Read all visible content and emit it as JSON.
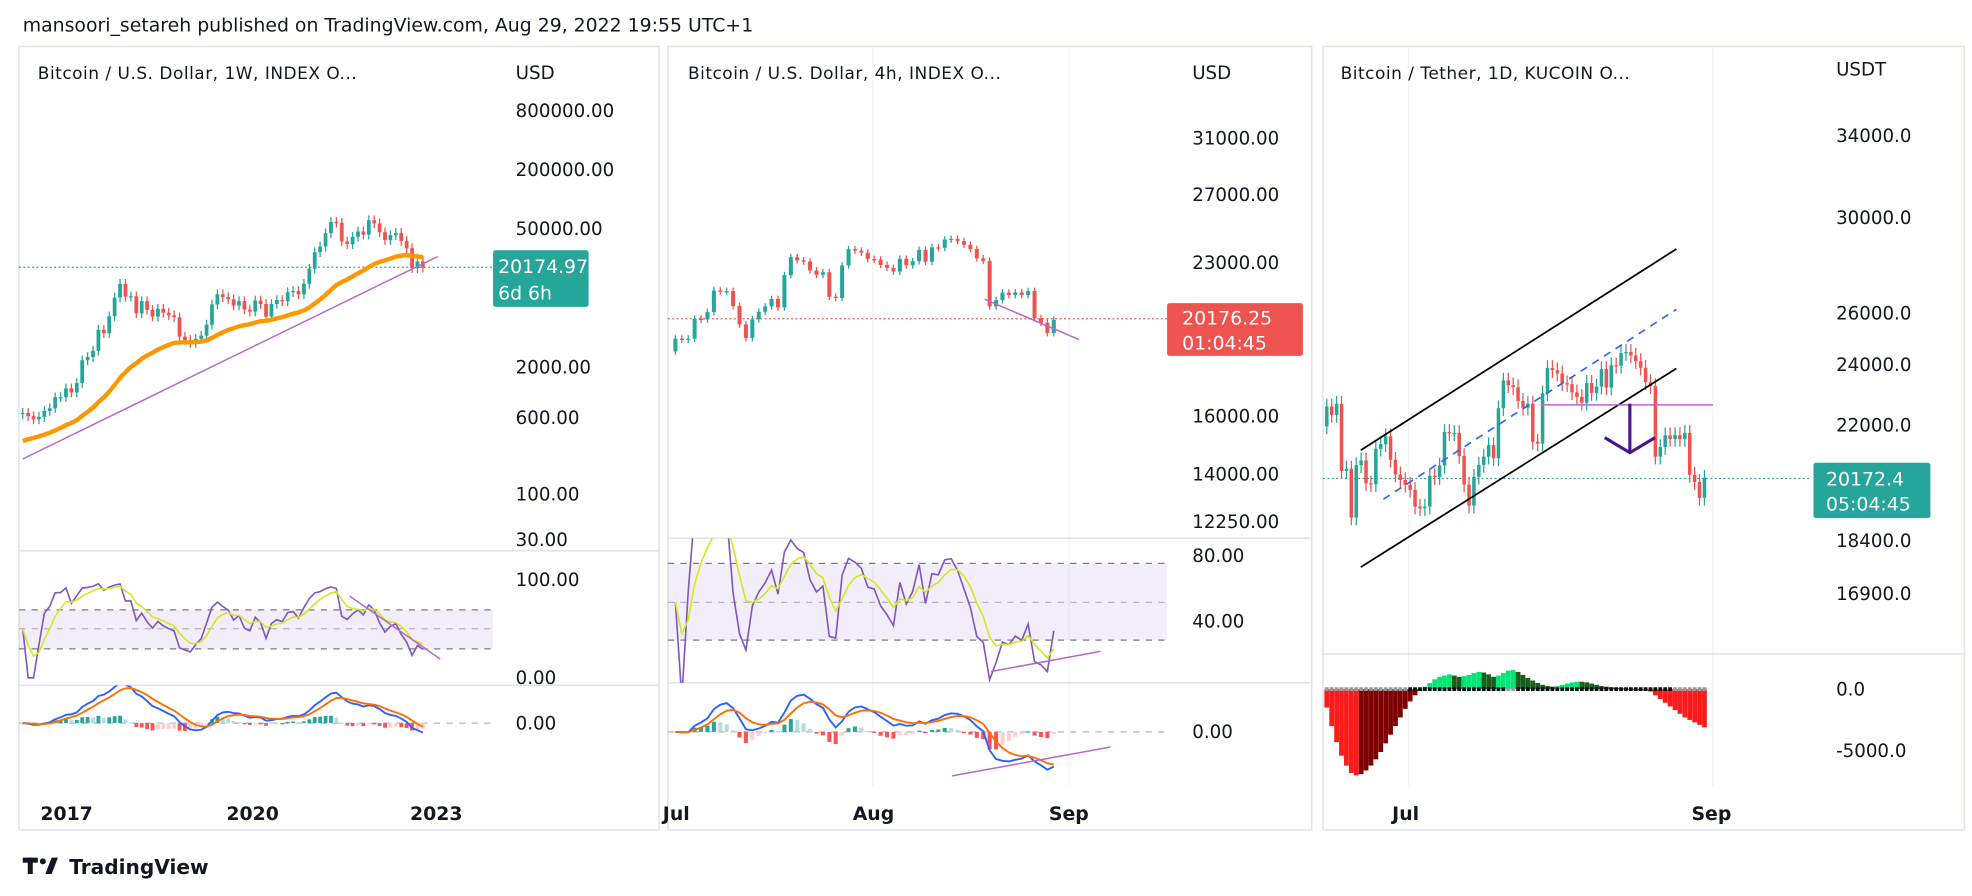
{
  "header": {
    "text": "mansoori_setareh published on TradingView.com, Aug 29, 2022 19:55 UTC+1"
  },
  "footer": {
    "brand": "TradingView",
    "logo_icon": "tradingview-logo-icon"
  },
  "colors": {
    "up": "#26a69a",
    "down": "#ef5350",
    "ma": "#ff9800",
    "rsi": "#7e57c2",
    "rsi_signal": "#d4e820",
    "macd": "#2962ff",
    "macd_signal": "#ff6d00",
    "trendline": "#ba68c8",
    "channel": "#000000",
    "midline": "#2962ff",
    "arrow": "#4a148c"
  },
  "chart_data": [
    {
      "type": "candlestick",
      "title": "Bitcoin / U.S. Dollar, 1W, INDEX  O...",
      "currency": "USD",
      "scale": "log",
      "yticks": [
        "800000.00",
        "200000.00",
        "50000.00",
        "2000.00",
        "600.00",
        "100.00",
        "30.00"
      ],
      "xticks": [
        "2017",
        "2020",
        "2023"
      ],
      "last_price": "20174.97",
      "countdown": "6d 6h",
      "last_price_color": "#26a69a",
      "closes": [
        670,
        620,
        575,
        610,
        700,
        745,
        965,
        970,
        1190,
        1080,
        1350,
        2300,
        2480,
        2870,
        4700,
        4340,
        6450,
        10000,
        13800,
        10200,
        10300,
        6900,
        9200,
        7500,
        6400,
        7700,
        7000,
        6600,
        6300,
        4000,
        3700,
        3450,
        3800,
        4100,
        5300,
        8500,
        10800,
        10100,
        9600,
        8300,
        9200,
        7550,
        7200,
        9350,
        8600,
        6400,
        8600,
        9450,
        9150,
        11350,
        11650,
        10780,
        13800,
        19700,
        29000,
        33100,
        45200,
        58800,
        57700,
        37300,
        35000,
        41500,
        47100,
        43800,
        61300,
        57000,
        46300,
        38500,
        43200,
        45500,
        37700,
        31800,
        19900,
        23300,
        20175
      ],
      "indicators": [
        {
          "type": "rsi",
          "yticks": [
            "100.00",
            "0.00"
          ],
          "ylim": [
            0,
            100
          ],
          "band": [
            30,
            70
          ]
        },
        {
          "type": "macd",
          "yticks": [
            "0.00"
          ]
        }
      ]
    },
    {
      "type": "candlestick",
      "title": "Bitcoin / U.S. Dollar, 4h, INDEX  O...",
      "currency": "USD",
      "scale": "log",
      "yticks": [
        "31000.00",
        "27000.00",
        "23000.00",
        "16000.00",
        "14000.00",
        "12250.00"
      ],
      "xticks": [
        "Jul",
        "Aug",
        "Sep"
      ],
      "last_price": "20176.25",
      "countdown": "01:04:45",
      "last_price_color": "#ef5350",
      "closes": [
        19300,
        19250,
        19300,
        20230,
        20190,
        20550,
        21630,
        21590,
        21600,
        20850,
        19960,
        19330,
        20200,
        20570,
        20830,
        21200,
        20780,
        22430,
        23400,
        23230,
        23160,
        22680,
        22450,
        22580,
        21310,
        21250,
        22950,
        23850,
        23770,
        23650,
        23300,
        23270,
        22980,
        22820,
        22620,
        23310,
        22960,
        23180,
        23810,
        23150,
        23950,
        23930,
        24400,
        24440,
        24310,
        24100,
        23860,
        23340,
        23200,
        20830,
        21140,
        21520,
        21400,
        21530,
        21400,
        21600,
        20260,
        20040,
        19560,
        20176
      ],
      "indicators": [
        {
          "type": "rsi",
          "yticks": [
            "80.00",
            "40.00"
          ],
          "band": [
            30,
            70
          ]
        },
        {
          "type": "macd",
          "yticks": [
            "0.00"
          ]
        }
      ]
    },
    {
      "type": "candlestick",
      "title": "Bitcoin / Tether, 1D, KUCOIN  O...",
      "currency": "USDT",
      "scale": "log",
      "yticks": [
        "34000.0",
        "30000.0",
        "26000.0",
        "24000.0",
        "22000.0",
        "18400.0",
        "16900.0"
      ],
      "xticks": [
        "Jul",
        "Sep"
      ],
      "last_price": "20172.4",
      "countdown": "05:04:45",
      "last_price_color": "#26a69a",
      "closes": [
        22490,
        22200,
        22580,
        20380,
        20450,
        18980,
        20560,
        20710,
        20000,
        19970,
        21080,
        21230,
        21490,
        20730,
        20270,
        20100,
        19950,
        19800,
        19300,
        19250,
        19300,
        20230,
        20190,
        20550,
        21630,
        21590,
        21600,
        20850,
        19960,
        19330,
        20200,
        20570,
        20830,
        21200,
        20780,
        22430,
        23400,
        23230,
        23160,
        22680,
        22450,
        22580,
        21310,
        21250,
        22950,
        23850,
        23770,
        23650,
        23300,
        23270,
        22980,
        22820,
        22620,
        23310,
        22960,
        23180,
        23810,
        23150,
        23950,
        23930,
        24400,
        24440,
        24310,
        24100,
        23860,
        23340,
        23200,
        20830,
        21140,
        21520,
        21400,
        21530,
        21400,
        21600,
        20260,
        20040,
        19560,
        20172
      ],
      "indicators": [
        {
          "type": "momentum_histogram",
          "yticks": [
            "0.0",
            "-5000.0"
          ],
          "values": [
            -1500,
            -3000,
            -4300,
            -5400,
            -6200,
            -6800,
            -7000,
            -6900,
            -6600,
            -6200,
            -5700,
            -5100,
            -4400,
            -3700,
            -3000,
            -2300,
            -1600,
            -1000,
            -500,
            -150,
            200,
            500,
            800,
            1000,
            1100,
            1200,
            1100,
            1000,
            1050,
            1150,
            1300,
            1400,
            1350,
            1200,
            1000,
            1100,
            1300,
            1500,
            1550,
            1400,
            1150,
            900,
            700,
            500,
            350,
            250,
            200,
            250,
            350,
            450,
            550,
            600,
            600,
            550,
            450,
            350,
            250,
            200,
            150,
            100,
            80,
            50,
            30,
            20,
            10,
            5,
            -200,
            -500,
            -800,
            -1100,
            -1400,
            -1700,
            -2000,
            -2300,
            -2500,
            -2700,
            -2900,
            -3100
          ]
        }
      ]
    }
  ]
}
